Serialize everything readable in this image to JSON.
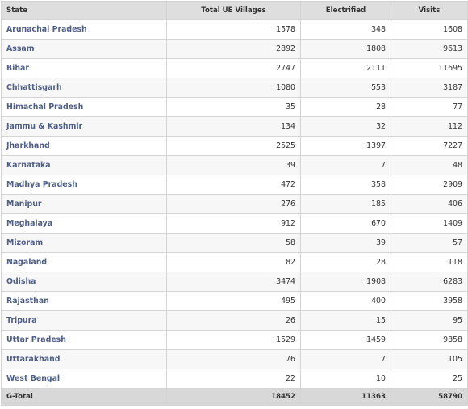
{
  "table": {
    "headers": [
      "State",
      "Total UE Villages",
      "Electrified",
      "Visits"
    ],
    "rows": [
      {
        "state": "Arunachal Pradesh",
        "total": "1578",
        "electrified": "348",
        "visits": "1608"
      },
      {
        "state": "Assam",
        "total": "2892",
        "electrified": "1808",
        "visits": "9613"
      },
      {
        "state": "Bihar",
        "total": "2747",
        "electrified": "2111",
        "visits": "11695"
      },
      {
        "state": "Chhattisgarh",
        "total": "1080",
        "electrified": "553",
        "visits": "3187"
      },
      {
        "state": "Himachal Pradesh",
        "total": "35",
        "electrified": "28",
        "visits": "77"
      },
      {
        "state": "Jammu & Kashmir",
        "total": "134",
        "electrified": "32",
        "visits": "112"
      },
      {
        "state": "Jharkhand",
        "total": "2525",
        "electrified": "1397",
        "visits": "7227"
      },
      {
        "state": "Karnataka",
        "total": "39",
        "electrified": "7",
        "visits": "48"
      },
      {
        "state": "Madhya Pradesh",
        "total": "472",
        "electrified": "358",
        "visits": "2909"
      },
      {
        "state": "Manipur",
        "total": "276",
        "electrified": "185",
        "visits": "406"
      },
      {
        "state": "Meghalaya",
        "total": "912",
        "electrified": "670",
        "visits": "1409"
      },
      {
        "state": "Mizoram",
        "total": "58",
        "electrified": "39",
        "visits": "57"
      },
      {
        "state": "Nagaland",
        "total": "82",
        "electrified": "28",
        "visits": "118"
      },
      {
        "state": "Odisha",
        "total": "3474",
        "electrified": "1908",
        "visits": "6283"
      },
      {
        "state": "Rajasthan",
        "total": "495",
        "electrified": "400",
        "visits": "3958"
      },
      {
        "state": "Tripura",
        "total": "26",
        "electrified": "15",
        "visits": "95"
      },
      {
        "state": "Uttar Pradesh",
        "total": "1529",
        "electrified": "1459",
        "visits": "9858"
      },
      {
        "state": "Uttarakhand",
        "total": "76",
        "electrified": "7",
        "visits": "105"
      },
      {
        "state": "West Bengal",
        "total": "22",
        "electrified": "10",
        "visits": "25"
      }
    ],
    "footer": {
      "label": "G-Total",
      "total": "18452",
      "electrified": "11363",
      "visits": "58790"
    }
  },
  "colors": {
    "header_bg": "#dedede",
    "footer_bg": "#d8d8d8",
    "state_link": "#4f5f86",
    "row_alt": "#f7f7f7",
    "border": "#d4d4d4"
  }
}
